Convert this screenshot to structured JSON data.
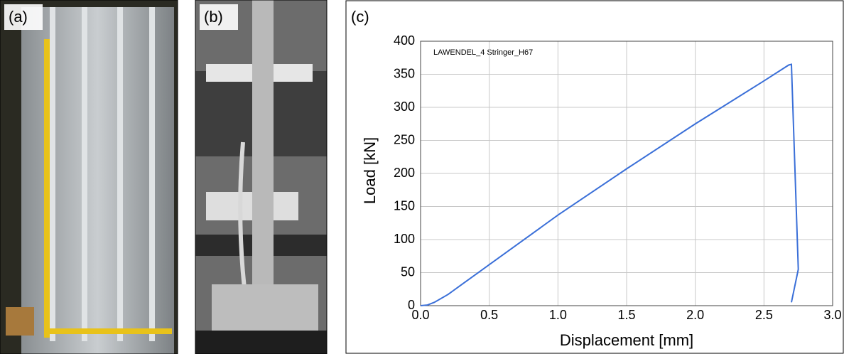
{
  "panels": [
    {
      "label": "(a)"
    },
    {
      "label": "(b)"
    }
  ],
  "chart_data": {
    "type": "line",
    "panel_label": "(c)",
    "annotation": "LAWENDEL_4 Stringer_H67",
    "x_label": "Displacement [mm]",
    "y_label": "Load [kN]",
    "x": [
      0,
      0.05,
      0.1,
      0.2,
      0.3,
      0.5,
      1.0,
      1.5,
      2.0,
      2.5,
      2.68,
      2.7,
      2.75,
      2.7
    ],
    "series": [
      {
        "name": "LAWENDEL_4 Stringer_H67",
        "color": "#3a6fd8",
        "values": [
          0,
          1,
          5,
          17,
          32,
          62,
          137,
          207,
          275,
          340,
          364,
          365,
          55,
          5
        ]
      }
    ],
    "xlim": [
      0,
      3
    ],
    "ylim": [
      0,
      400
    ],
    "xticks": [
      {
        "value": 0,
        "label": "0.0"
      },
      0.5,
      {
        "value": 1,
        "label": "1.0"
      },
      1.5,
      {
        "value": 2,
        "label": "2.0"
      },
      2.5,
      {
        "value": 3,
        "label": "3.0"
      }
    ],
    "yticks": [
      0,
      50,
      100,
      150,
      200,
      250,
      300,
      350,
      400
    ],
    "grid": true
  }
}
